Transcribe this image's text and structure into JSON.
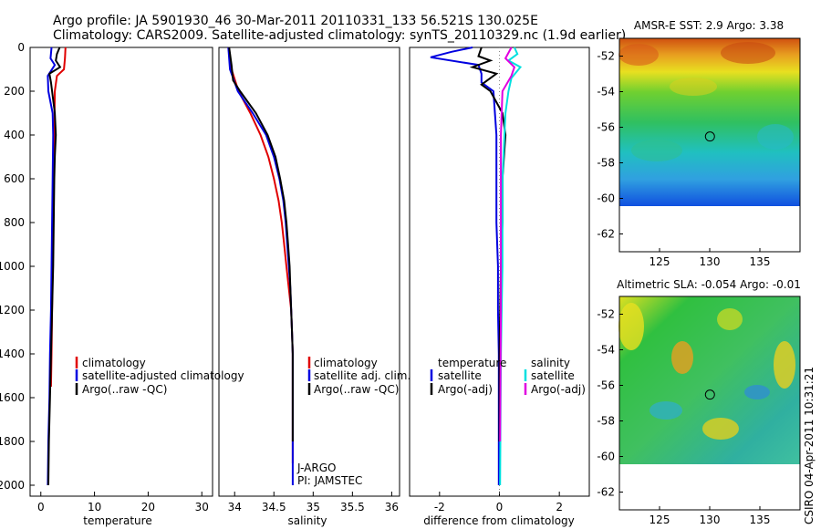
{
  "header": {
    "line1": "Argo profile: JA 5901930_46 30-Mar-2011 20110331_133 56.521S 130.025E",
    "line2": "Climatology: CARS2009. Satellite-adjusted climatology: synTS_20110329.nc (1.9d earlier)"
  },
  "colors": {
    "climatology": "#e00000",
    "satellite": "#0000e0",
    "argo": "#000000",
    "satellite_sal": "#00e0e0",
    "argo_sal": "#e000e0"
  },
  "side_text": "CSIRO 04-Apr-2011 10:31:21",
  "chart_data": [
    {
      "type": "line",
      "id": "temperature",
      "xlabel": "temperature",
      "xlim": [
        -2,
        32
      ],
      "ylim": [
        2050,
        0
      ],
      "xticks": [
        0,
        10,
        20,
        30
      ],
      "yticks": [
        0,
        200,
        400,
        600,
        800,
        1000,
        1200,
        1400,
        1600,
        1800,
        2000
      ],
      "legend": [
        "climatology",
        "satellite-adjusted climatology",
        "Argo(..raw -QC)"
      ],
      "series": [
        {
          "name": "climatology",
          "color": "#e00000",
          "points": [
            [
              4.6,
              0
            ],
            [
              4.5,
              50
            ],
            [
              4.3,
              100
            ],
            [
              3.0,
              130
            ],
            [
              2.6,
              200
            ],
            [
              2.5,
              400
            ],
            [
              2.4,
              600
            ],
            [
              2.3,
              800
            ],
            [
              2.2,
              1000
            ],
            [
              2.1,
              1200
            ],
            [
              2.0,
              1400
            ],
            [
              1.9,
              1550
            ]
          ]
        },
        {
          "name": "satellite",
          "color": "#0000e0",
          "points": [
            [
              2.0,
              0
            ],
            [
              1.8,
              50
            ],
            [
              2.6,
              80
            ],
            [
              1.3,
              130
            ],
            [
              1.4,
              200
            ],
            [
              2.2,
              300
            ],
            [
              2.3,
              400
            ],
            [
              2.2,
              600
            ],
            [
              2.1,
              800
            ],
            [
              2.0,
              1000
            ],
            [
              1.9,
              1200
            ],
            [
              1.7,
              1400
            ],
            [
              1.6,
              1600
            ],
            [
              1.4,
              1800
            ],
            [
              1.3,
              2000
            ]
          ]
        },
        {
          "name": "argo",
          "color": "#000000",
          "points": [
            [
              3.5,
              0
            ],
            [
              3.0,
              30
            ],
            [
              2.8,
              60
            ],
            [
              3.6,
              90
            ],
            [
              1.6,
              120
            ],
            [
              1.9,
              160
            ],
            [
              2.1,
              200
            ],
            [
              2.6,
              300
            ],
            [
              2.8,
              400
            ],
            [
              2.6,
              500
            ],
            [
              2.5,
              600
            ],
            [
              2.4,
              800
            ],
            [
              2.3,
              1000
            ],
            [
              2.1,
              1200
            ],
            [
              1.9,
              1400
            ],
            [
              1.7,
              1600
            ],
            [
              1.5,
              1800
            ],
            [
              1.4,
              2000
            ]
          ]
        }
      ]
    },
    {
      "type": "line",
      "id": "salinity",
      "xlabel": "salinity",
      "xlim": [
        33.8,
        36.1
      ],
      "ylim": [
        2050,
        0
      ],
      "xticks": [
        34,
        34.5,
        35,
        35.5,
        36
      ],
      "yticks": [],
      "legend": [
        "climatology",
        "satellite adj. clim.",
        "Argo(..raw -QC)"
      ],
      "annotation": [
        "J-ARGO",
        "PI: JAMSTEC"
      ],
      "series": [
        {
          "name": "climatology",
          "color": "#e00000",
          "points": [
            [
              33.92,
              0
            ],
            [
              33.96,
              100
            ],
            [
              34.05,
              200
            ],
            [
              34.2,
              300
            ],
            [
              34.33,
              400
            ],
            [
              34.43,
              500
            ],
            [
              34.5,
              600
            ],
            [
              34.56,
              700
            ],
            [
              34.6,
              800
            ],
            [
              34.63,
              900
            ],
            [
              34.66,
              1000
            ],
            [
              34.69,
              1100
            ],
            [
              34.72,
              1200
            ],
            [
              34.73,
              1300
            ],
            [
              34.74,
              1400
            ],
            [
              34.74,
              1500
            ],
            [
              34.74,
              1600
            ],
            [
              34.74,
              1700
            ],
            [
              34.74,
              1800
            ],
            [
              34.74,
              1900
            ]
          ]
        },
        {
          "name": "satellite",
          "color": "#0000e0",
          "points": [
            [
              33.92,
              0
            ],
            [
              33.94,
              100
            ],
            [
              34.04,
              200
            ],
            [
              34.23,
              300
            ],
            [
              34.4,
              400
            ],
            [
              34.5,
              500
            ],
            [
              34.57,
              600
            ],
            [
              34.62,
              700
            ],
            [
              34.65,
              800
            ],
            [
              34.67,
              900
            ],
            [
              34.69,
              1000
            ],
            [
              34.71,
              1100
            ],
            [
              34.72,
              1200
            ],
            [
              34.73,
              1300
            ],
            [
              34.74,
              1400
            ],
            [
              34.74,
              1600
            ],
            [
              34.74,
              1800
            ],
            [
              34.74,
              2000
            ]
          ]
        },
        {
          "name": "argo",
          "color": "#000000",
          "points": [
            [
              33.93,
              0
            ],
            [
              33.96,
              80
            ],
            [
              33.98,
              150
            ],
            [
              34.07,
              200
            ],
            [
              34.27,
              300
            ],
            [
              34.42,
              400
            ],
            [
              34.52,
              500
            ],
            [
              34.58,
              600
            ],
            [
              34.63,
              700
            ],
            [
              34.66,
              800
            ],
            [
              34.68,
              900
            ],
            [
              34.7,
              1000
            ],
            [
              34.71,
              1100
            ],
            [
              34.72,
              1200
            ],
            [
              34.73,
              1300
            ],
            [
              34.74,
              1400
            ],
            [
              34.74,
              1600
            ],
            [
              34.74,
              1800
            ]
          ]
        }
      ]
    },
    {
      "type": "line",
      "id": "difference",
      "xlabel": "difference from climatology",
      "xlim": [
        -3,
        3
      ],
      "ylim": [
        2050,
        0
      ],
      "xticks": [
        -2,
        0,
        2
      ],
      "yticks": [],
      "legend_left": [
        "temperature",
        "satellite",
        "Argo(-adj)"
      ],
      "legend_right": [
        "salinity",
        "satellite",
        "Argo(-adj)"
      ],
      "series": [
        {
          "name": "temperature satellite",
          "color": "#0000e0",
          "points": [
            [
              -0.9,
              0
            ],
            [
              -1.6,
              20
            ],
            [
              -2.3,
              45
            ],
            [
              -0.7,
              80
            ],
            [
              -0.6,
              120
            ],
            [
              -0.6,
              160
            ],
            [
              -0.2,
              200
            ],
            [
              -0.1,
              400
            ],
            [
              -0.1,
              600
            ],
            [
              -0.1,
              800
            ],
            [
              -0.05,
              1000
            ],
            [
              -0.05,
              1200
            ],
            [
              -0.02,
              1400
            ],
            [
              -0.02,
              2000
            ]
          ]
        },
        {
          "name": "temperature argo",
          "color": "#000000",
          "points": [
            [
              -0.6,
              0
            ],
            [
              -0.7,
              40
            ],
            [
              -0.3,
              60
            ],
            [
              -0.9,
              90
            ],
            [
              -0.1,
              120
            ],
            [
              -0.6,
              170
            ],
            [
              -0.3,
              200
            ],
            [
              0.1,
              300
            ],
            [
              0.2,
              400
            ],
            [
              0.1,
              600
            ],
            [
              0.1,
              800
            ],
            [
              0.05,
              1000
            ],
            [
              0.0,
              1400
            ],
            [
              0.0,
              1800
            ]
          ]
        },
        {
          "name": "salinity satellite",
          "color": "#00e0e0",
          "points": [
            [
              0.5,
              0
            ],
            [
              0.6,
              30
            ],
            [
              0.3,
              60
            ],
            [
              0.7,
              90
            ],
            [
              0.4,
              140
            ],
            [
              0.3,
              200
            ],
            [
              0.2,
              300
            ],
            [
              0.1,
              600
            ],
            [
              0.1,
              1000
            ],
            [
              0.05,
              1400
            ],
            [
              0.02,
              2000
            ]
          ]
        },
        {
          "name": "salinity argo",
          "color": "#e000e0",
          "points": [
            [
              0.4,
              0
            ],
            [
              0.2,
              50
            ],
            [
              0.5,
              90
            ],
            [
              0.4,
              130
            ],
            [
              0.1,
              200
            ],
            [
              0.05,
              400
            ],
            [
              0.05,
              800
            ],
            [
              0.05,
              1200
            ],
            [
              0.03,
              1600
            ],
            [
              0.02,
              1800
            ]
          ]
        }
      ]
    },
    {
      "type": "heatmap",
      "id": "sst-map",
      "title": "AMSR-E SST: 2.9  Argo: 3.38",
      "xlim": [
        121,
        139
      ],
      "ylim": [
        -63,
        -51
      ],
      "xticks": [
        125,
        130,
        135
      ],
      "yticks": [
        -52,
        -54,
        -56,
        -58,
        -60,
        -62
      ],
      "marker": [
        130.025,
        -56.521
      ]
    },
    {
      "type": "heatmap",
      "id": "sla-map",
      "title": "Altimetric SLA: -0.054  Argo: -0.01",
      "xlim": [
        121,
        139
      ],
      "ylim": [
        -63,
        -51
      ],
      "xticks": [
        125,
        130,
        135
      ],
      "yticks": [
        -52,
        -54,
        -56,
        -58,
        -60,
        -62
      ],
      "marker": [
        130.025,
        -56.521
      ]
    }
  ]
}
